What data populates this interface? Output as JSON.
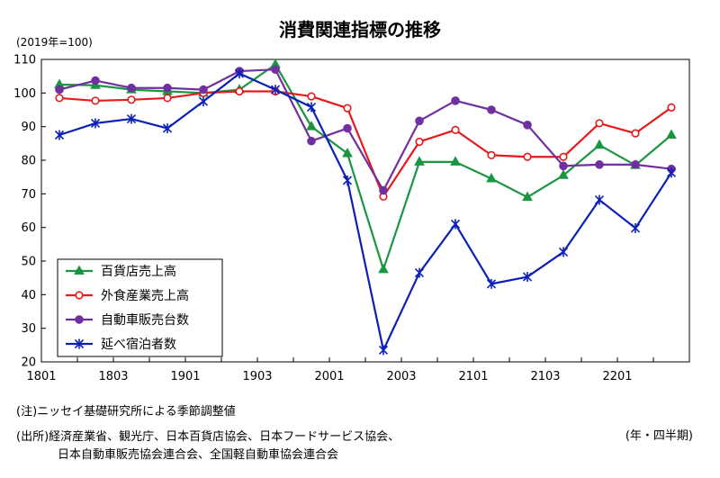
{
  "chart_data": {
    "type": "line",
    "title": "消費関連指標の推移",
    "ylabel": "(2019年=100)",
    "xlabel": "(年・四半期)",
    "ylim": [
      20,
      110
    ],
    "yticks": [
      20,
      30,
      40,
      50,
      60,
      70,
      80,
      90,
      100,
      110
    ],
    "x": [
      "1801",
      "1802",
      "1803",
      "1804",
      "1901",
      "1902",
      "1903",
      "1904",
      "2001",
      "2002",
      "2003",
      "2004",
      "2101",
      "2102",
      "2103",
      "2104",
      "2201",
      "2202"
    ],
    "xtick_labels": [
      "1801",
      "1803",
      "1901",
      "1903",
      "2001",
      "2003",
      "2101",
      "2103",
      "2201"
    ],
    "grid": false,
    "legend_position": "bottom-left",
    "series": [
      {
        "name": "百貨店売上高",
        "color": "#1a9641",
        "marker": "triangle",
        "values": [
          102.5,
          102.3,
          101.0,
          100.5,
          100.0,
          101.0,
          108.5,
          90.0,
          82.0,
          47.5,
          79.5,
          79.5,
          74.5,
          69.0,
          75.5,
          84.5,
          78.5,
          87.5
        ]
      },
      {
        "name": "外食産業売上高",
        "color": "#e41a1c",
        "marker": "open-circle",
        "values": [
          98.5,
          97.7,
          98.0,
          98.5,
          100.0,
          100.5,
          100.5,
          99.0,
          95.5,
          69.2,
          85.5,
          89.0,
          81.5,
          81.0,
          81.0,
          91.0,
          88.0,
          95.7
        ]
      },
      {
        "name": "自動車販売台数",
        "color": "#7030a0",
        "marker": "circle",
        "values": [
          101.0,
          103.7,
          101.5,
          101.5,
          101.0,
          106.5,
          107.0,
          85.7,
          89.5,
          71.0,
          91.7,
          97.7,
          95.0,
          90.5,
          78.3,
          78.7,
          78.7,
          77.4
        ]
      },
      {
        "name": "延べ宿泊者数",
        "color": "#0c1fb8",
        "marker": "asterisk",
        "values": [
          87.5,
          91.0,
          92.3,
          89.5,
          97.5,
          105.8,
          101.0,
          95.8,
          74.0,
          23.5,
          46.5,
          61.0,
          43.2,
          45.3,
          52.7,
          68.2,
          59.8,
          76.3
        ]
      }
    ]
  },
  "notes": {
    "note1": "(注)ニッセイ基礎研究所による季節調整値",
    "source_line1": "(出所)経済産業省、観光庁、日本百貨店協会、日本フードサービス協会、",
    "source_line2": "日本自動車販売協会連合会、全国軽自動車協会連合会"
  }
}
